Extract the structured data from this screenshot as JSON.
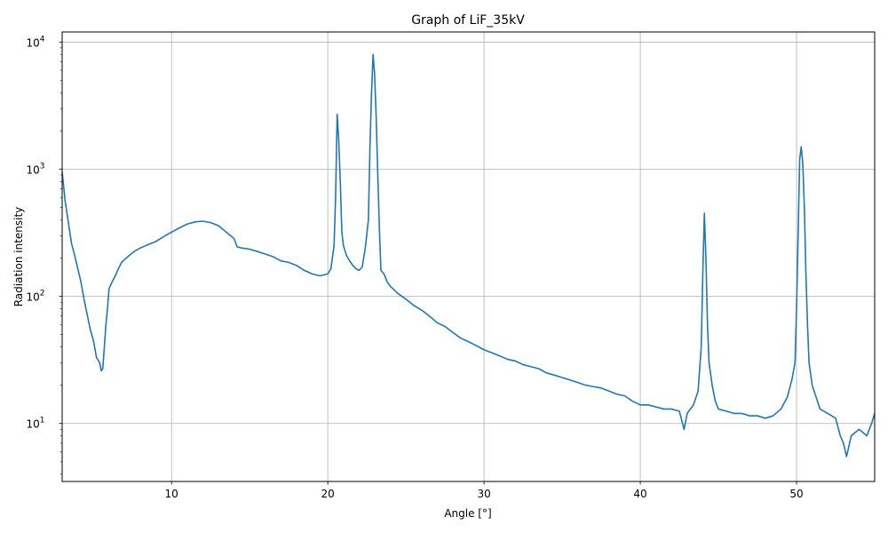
{
  "chart_data": {
    "type": "line",
    "title": "Graph of LiF_35kV",
    "xlabel": "Angle [°]",
    "ylabel": "Radiation intensity",
    "xlim": [
      3,
      55
    ],
    "ylim": [
      3.5,
      12000
    ],
    "yscale": "log",
    "grid": true,
    "xticks": [
      10,
      20,
      30,
      40,
      50
    ],
    "yticks": [
      {
        "value": 10,
        "base": "10",
        "exp": "1"
      },
      {
        "value": 100,
        "base": "10",
        "exp": "2"
      },
      {
        "value": 1000,
        "base": "10",
        "exp": "3"
      },
      {
        "value": 10000,
        "base": "10",
        "exp": "4"
      }
    ],
    "series": [
      {
        "color": "#1f77b4",
        "points": [
          [
            3.0,
            950
          ],
          [
            3.2,
            550
          ],
          [
            3.4,
            380
          ],
          [
            3.6,
            260
          ],
          [
            3.8,
            210
          ],
          [
            4.0,
            165
          ],
          [
            4.2,
            130
          ],
          [
            4.4,
            95
          ],
          [
            4.6,
            72
          ],
          [
            4.8,
            55
          ],
          [
            5.0,
            45
          ],
          [
            5.2,
            33
          ],
          [
            5.4,
            30
          ],
          [
            5.5,
            26
          ],
          [
            5.6,
            27
          ],
          [
            5.7,
            40
          ],
          [
            5.8,
            60
          ],
          [
            5.9,
            80
          ],
          [
            6.0,
            115
          ],
          [
            6.2,
            130
          ],
          [
            6.4,
            145
          ],
          [
            6.6,
            165
          ],
          [
            6.8,
            185
          ],
          [
            7.0,
            195
          ],
          [
            7.3,
            210
          ],
          [
            7.6,
            225
          ],
          [
            8.0,
            240
          ],
          [
            8.5,
            255
          ],
          [
            9.0,
            270
          ],
          [
            9.5,
            295
          ],
          [
            10.0,
            320
          ],
          [
            10.5,
            345
          ],
          [
            11.0,
            370
          ],
          [
            11.5,
            385
          ],
          [
            12.0,
            390
          ],
          [
            12.5,
            380
          ],
          [
            13.0,
            360
          ],
          [
            13.5,
            320
          ],
          [
            14.0,
            285
          ],
          [
            14.2,
            245
          ],
          [
            14.5,
            240
          ],
          [
            15.0,
            235
          ],
          [
            15.5,
            225
          ],
          [
            16.0,
            215
          ],
          [
            16.5,
            205
          ],
          [
            17.0,
            190
          ],
          [
            17.5,
            185
          ],
          [
            18.0,
            175
          ],
          [
            18.5,
            160
          ],
          [
            19.0,
            150
          ],
          [
            19.5,
            145
          ],
          [
            20.0,
            150
          ],
          [
            20.2,
            165
          ],
          [
            20.4,
            250
          ],
          [
            20.5,
            600
          ],
          [
            20.6,
            2700
          ],
          [
            20.7,
            1700
          ],
          [
            20.8,
            800
          ],
          [
            20.9,
            320
          ],
          [
            21.0,
            250
          ],
          [
            21.2,
            210
          ],
          [
            21.4,
            190
          ],
          [
            21.6,
            175
          ],
          [
            21.8,
            165
          ],
          [
            22.0,
            160
          ],
          [
            22.2,
            170
          ],
          [
            22.4,
            240
          ],
          [
            22.6,
            400
          ],
          [
            22.7,
            1500
          ],
          [
            22.8,
            4000
          ],
          [
            22.9,
            8000
          ],
          [
            23.0,
            5500
          ],
          [
            23.1,
            2500
          ],
          [
            23.2,
            900
          ],
          [
            23.3,
            350
          ],
          [
            23.4,
            160
          ],
          [
            23.6,
            150
          ],
          [
            23.8,
            130
          ],
          [
            24.0,
            120
          ],
          [
            24.5,
            105
          ],
          [
            25.0,
            95
          ],
          [
            25.5,
            85
          ],
          [
            26.0,
            78
          ],
          [
            26.5,
            70
          ],
          [
            27.0,
            62
          ],
          [
            27.5,
            58
          ],
          [
            28.0,
            52
          ],
          [
            28.5,
            47
          ],
          [
            29.0,
            44
          ],
          [
            29.5,
            41
          ],
          [
            30.0,
            38
          ],
          [
            30.5,
            36
          ],
          [
            31.0,
            34
          ],
          [
            31.5,
            32
          ],
          [
            32.0,
            31
          ],
          [
            32.5,
            29
          ],
          [
            33.0,
            28
          ],
          [
            33.5,
            27
          ],
          [
            34.0,
            25
          ],
          [
            34.5,
            24
          ],
          [
            35.0,
            23
          ],
          [
            35.5,
            22
          ],
          [
            36.0,
            21
          ],
          [
            36.5,
            20
          ],
          [
            37.0,
            19.5
          ],
          [
            37.5,
            19
          ],
          [
            38.0,
            18
          ],
          [
            38.5,
            17
          ],
          [
            39.0,
            16.5
          ],
          [
            39.5,
            15
          ],
          [
            40.0,
            14
          ],
          [
            40.5,
            14
          ],
          [
            41.0,
            13.5
          ],
          [
            41.5,
            13
          ],
          [
            42.0,
            13
          ],
          [
            42.5,
            12.5
          ],
          [
            42.8,
            9
          ],
          [
            43.0,
            12
          ],
          [
            43.4,
            14
          ],
          [
            43.7,
            18
          ],
          [
            43.9,
            40
          ],
          [
            44.0,
            150
          ],
          [
            44.1,
            450
          ],
          [
            44.2,
            200
          ],
          [
            44.3,
            60
          ],
          [
            44.4,
            30
          ],
          [
            44.6,
            20
          ],
          [
            44.8,
            15
          ],
          [
            45.0,
            13
          ],
          [
            45.5,
            12.5
          ],
          [
            46.0,
            12
          ],
          [
            46.5,
            12
          ],
          [
            47.0,
            11.5
          ],
          [
            47.5,
            11.5
          ],
          [
            48.0,
            11
          ],
          [
            48.5,
            11.5
          ],
          [
            49.0,
            13
          ],
          [
            49.4,
            16
          ],
          [
            49.7,
            22
          ],
          [
            49.9,
            30
          ],
          [
            50.0,
            80
          ],
          [
            50.1,
            300
          ],
          [
            50.2,
            1200
          ],
          [
            50.3,
            1500
          ],
          [
            50.4,
            1100
          ],
          [
            50.5,
            500
          ],
          [
            50.6,
            150
          ],
          [
            50.7,
            60
          ],
          [
            50.8,
            30
          ],
          [
            51.0,
            20
          ],
          [
            51.5,
            13
          ],
          [
            52.0,
            12
          ],
          [
            52.5,
            11
          ],
          [
            52.8,
            8
          ],
          [
            53.0,
            7
          ],
          [
            53.2,
            5.5
          ],
          [
            53.5,
            8
          ],
          [
            54.0,
            9
          ],
          [
            54.5,
            8
          ],
          [
            54.8,
            10
          ],
          [
            55.0,
            12
          ]
        ]
      }
    ]
  }
}
